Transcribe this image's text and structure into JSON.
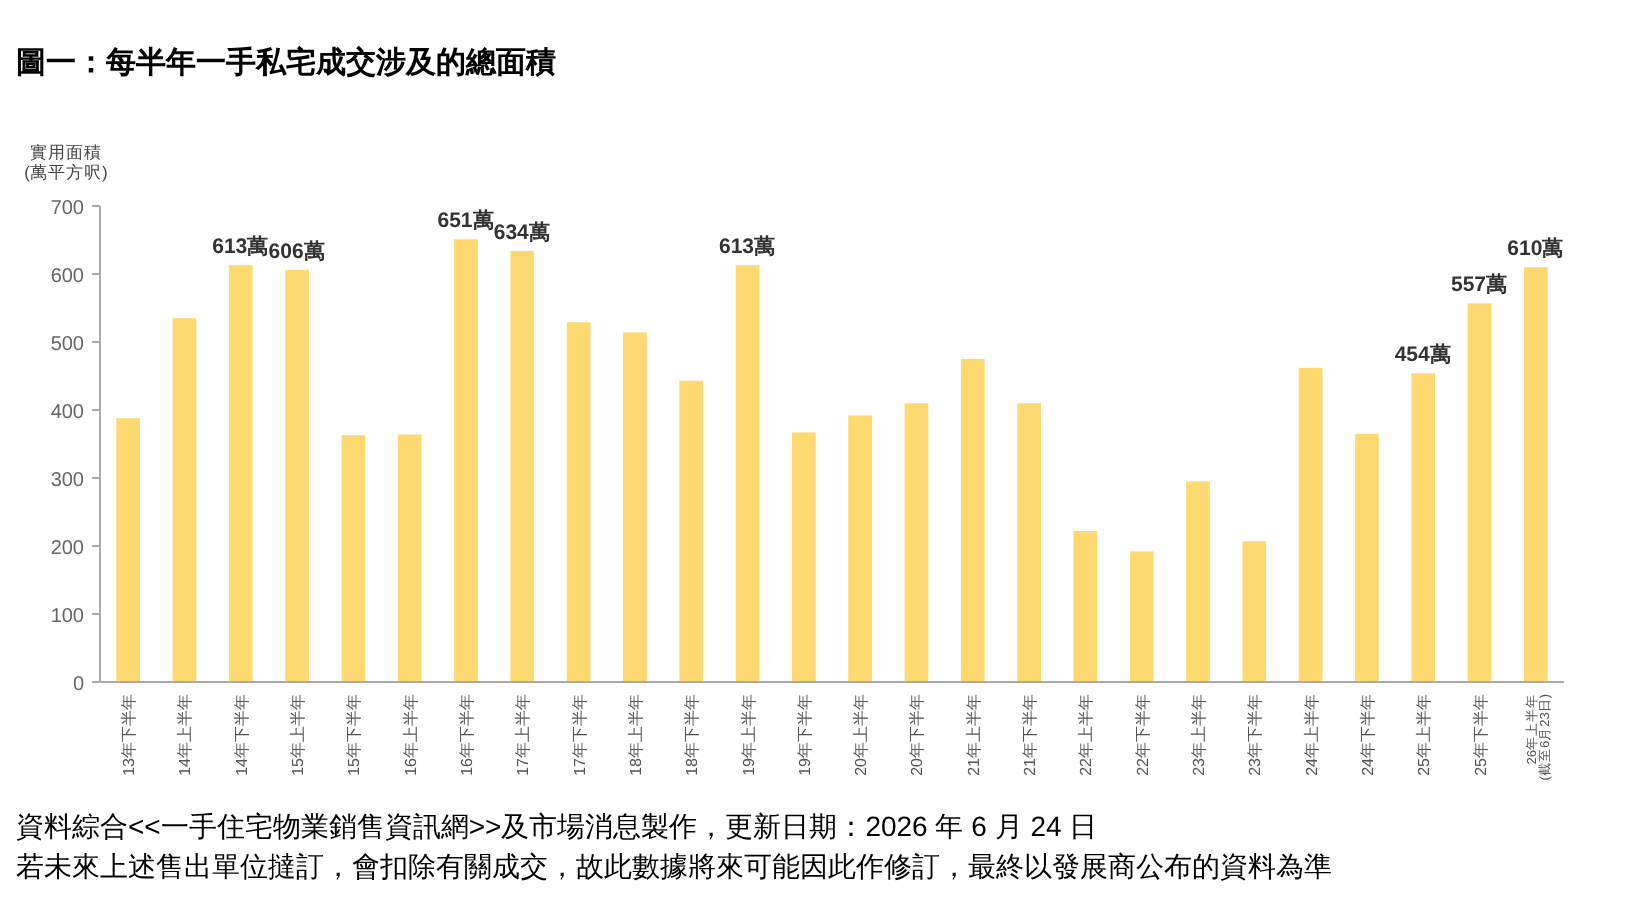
{
  "chart_data": {
    "type": "bar",
    "title": "圖一：每半年一手私宅成交涉及的總面積",
    "ylabel": "實用面積\n(萬平方呎)",
    "categories": [
      "13年下半年",
      "14年上半年",
      "14年下半年",
      "15年上半年",
      "15年下半年",
      "16年上半年",
      "16年下半年",
      "17年上半年",
      "17年下半年",
      "18年上半年",
      "18年下半年",
      "19年上半年",
      "19年下半年",
      "20年上半年",
      "20年下半年",
      "21年上半年",
      "21年下半年",
      "22年上半年",
      "22年下半年",
      "23年上半年",
      "23年下半年",
      "24年上半年",
      "24年下半年",
      "25年上半年",
      "25年下半年",
      "26年上半年\n(截至6月23日)"
    ],
    "values": [
      388,
      535,
      613,
      606,
      363,
      364,
      651,
      634,
      529,
      514,
      443,
      613,
      367,
      392,
      410,
      475,
      410,
      222,
      192,
      295,
      207,
      462,
      365,
      454,
      557,
      610
    ],
    "value_labels": [
      null,
      null,
      "613萬",
      "606萬",
      null,
      null,
      "651萬",
      "634萬",
      null,
      null,
      null,
      "613萬",
      null,
      null,
      null,
      null,
      null,
      null,
      null,
      null,
      null,
      null,
      null,
      "454萬",
      "557萬",
      "610萬"
    ],
    "color": "#fdd96f",
    "ylim": [
      0,
      700
    ],
    "yticks": [
      0,
      100,
      200,
      300,
      400,
      500,
      600,
      700
    ],
    "grid": false,
    "annotations": [
      "資料綜合<<一手住宅物業銷售資訊網>>及市場消息製作，更新日期：2026 年 6 月 24 日",
      "若未來上述售出單位撻訂，會扣除有關成交，故此數據將來可能因此作修訂，最終以發展商公布的資料為準"
    ]
  }
}
